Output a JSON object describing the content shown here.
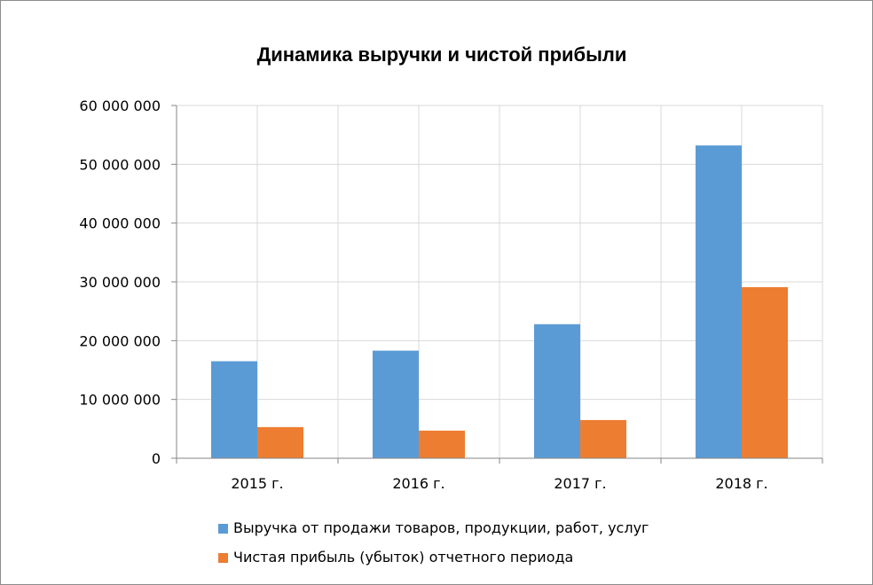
{
  "chart_data": {
    "type": "bar",
    "title": "Динамика выручки и чистой прибыли",
    "categories": [
      "2015 г.",
      "2016 г.",
      "2017 г.",
      "2018 г."
    ],
    "series": [
      {
        "name": "Выручка от продажи товаров, продукции, работ, услуг",
        "color": "#5b9bd5",
        "values": [
          16500000,
          18300000,
          22800000,
          53200000
        ]
      },
      {
        "name": "Чистая прибыль (убыток) отчетного периода",
        "color": "#ed7d31",
        "values": [
          5300000,
          4700000,
          6500000,
          29100000
        ]
      }
    ],
    "ylim": [
      0,
      60000000
    ],
    "yticks": [
      0,
      10000000,
      20000000,
      30000000,
      40000000,
      50000000,
      60000000
    ],
    "ytick_labels": [
      "0",
      "10 000 000",
      "20 000 000",
      "30 000 000",
      "40 000 000",
      "50 000 000",
      "60 000 000"
    ],
    "xlabel": "",
    "ylabel": "",
    "grid": true,
    "legend_position": "bottom"
  }
}
